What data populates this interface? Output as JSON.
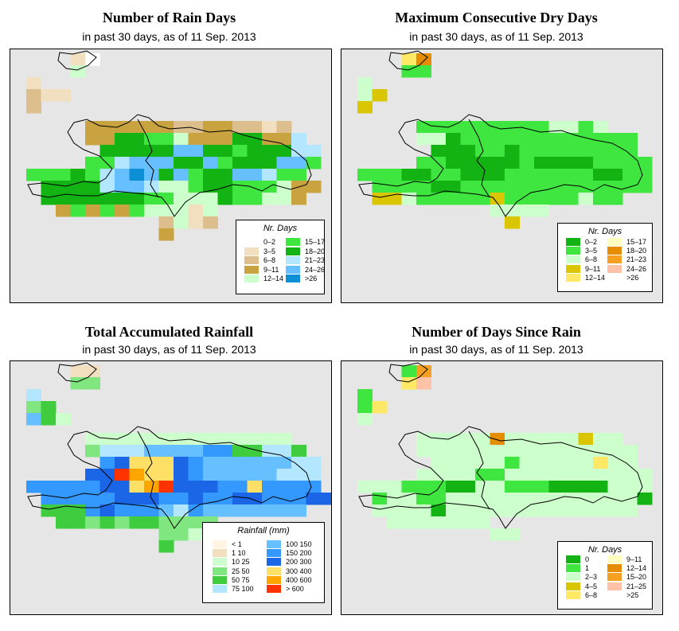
{
  "panels": [
    {
      "title": "Number of Rain Days",
      "subtitle": "in past 30 days, as of  11 Sep. 2013",
      "legend_title": "Nr. Days",
      "legend": [
        {
          "label": "0–2",
          "color": "#ffffff"
        },
        {
          "label": "3–5",
          "color": "#f2dfc0"
        },
        {
          "label": "6–8",
          "color": "#dcbf8c"
        },
        {
          "label": "9–11",
          "color": "#c9a33f"
        },
        {
          "label": "12–14",
          "color": "#ccffcc"
        },
        {
          "label": "15–17",
          "color": "#3fe63f"
        },
        {
          "label": "18–20",
          "color": "#13b313"
        },
        {
          "label": "21–23",
          "color": "#b3e6ff"
        },
        {
          "label": "24–26",
          "color": "#66bfff"
        },
        {
          "label": ">26",
          "color": "#0d8fd6"
        }
      ]
    },
    {
      "title": "Maximum Consecutive Dry Days",
      "subtitle": "in past 30 days, as of  11 Sep. 2013",
      "legend_title": "Nr. Days",
      "legend": [
        {
          "label": "0–2",
          "color": "#13b313"
        },
        {
          "label": "3–5",
          "color": "#3fe63f"
        },
        {
          "label": "6–8",
          "color": "#ccffcc"
        },
        {
          "label": "9–11",
          "color": "#d9c600"
        },
        {
          "label": "12–14",
          "color": "#ffe866"
        },
        {
          "label": "15–17",
          "color": "#ffffc0"
        },
        {
          "label": "18–20",
          "color": "#e68c00"
        },
        {
          "label": "21–23",
          "color": "#f5a020"
        },
        {
          "label": "24–26",
          "color": "#ffc2a6"
        },
        {
          "label": ">26",
          "color": "#ffffff"
        }
      ]
    },
    {
      "title": "Total Accumulated Rainfall",
      "subtitle": "in past 30 days, as of  11 Sep. 2013",
      "legend_title": "Rainfall (mm)",
      "legend": [
        {
          "label": "< 1",
          "color": "#fff5e1"
        },
        {
          "label": "1   10",
          "color": "#f2dfc0"
        },
        {
          "label": "10   25",
          "color": "#ccffcc"
        },
        {
          "label": "25   50",
          "color": "#80e680"
        },
        {
          "label": "50   75",
          "color": "#3fcc3f"
        },
        {
          "label": "75  100",
          "color": "#b3e6ff"
        },
        {
          "label": "100  150",
          "color": "#66bfff"
        },
        {
          "label": "150  200",
          "color": "#3399ff"
        },
        {
          "label": "200  300",
          "color": "#1a66e6"
        },
        {
          "label": "300  400",
          "color": "#ffe066"
        },
        {
          "label": "400  600",
          "color": "#ffa500"
        },
        {
          "label": "> 600",
          "color": "#ff3300"
        }
      ]
    },
    {
      "title": "Number of Days Since Rain",
      "subtitle": "in past 30 days, as of  11 Sep. 2013",
      "legend_title": "Nr. Days",
      "legend": [
        {
          "label": "0",
          "color": "#13b313"
        },
        {
          "label": "1",
          "color": "#3fe63f"
        },
        {
          "label": "2–3",
          "color": "#ccffcc"
        },
        {
          "label": "4–5",
          "color": "#d9c600"
        },
        {
          "label": "6–8",
          "color": "#ffe866"
        },
        {
          "label": "9–11",
          "color": "#ffffc0"
        },
        {
          "label": "12–14",
          "color": "#e68c00"
        },
        {
          "label": "15–20",
          "color": "#f5a020"
        },
        {
          "label": "21–25",
          "color": "#ffc2a6"
        },
        {
          "label": ">25",
          "color": "#ffffff"
        }
      ]
    }
  ]
}
